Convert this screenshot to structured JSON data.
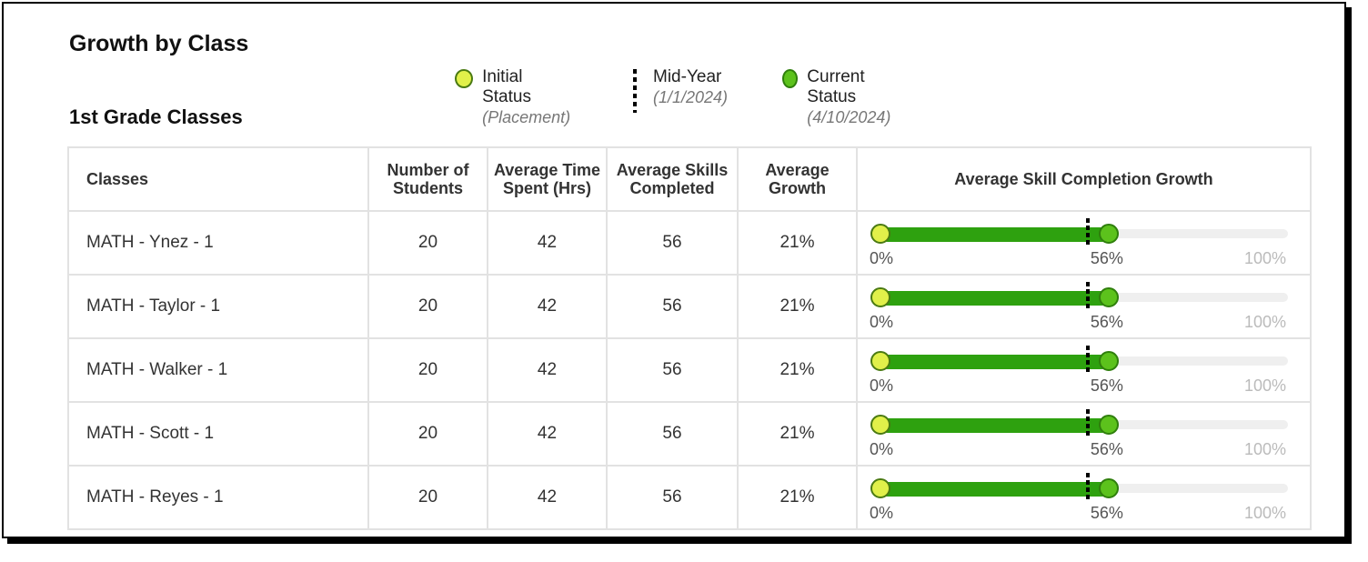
{
  "page": {
    "title": "Growth by Class",
    "subtitle": "1st Grade Classes"
  },
  "legend": {
    "initial": {
      "label": "Initial Status",
      "sub": "(Placement)"
    },
    "mid": {
      "label": "Mid-Year",
      "sub": "(1/1/2024)"
    },
    "current": {
      "label": "Current Status",
      "sub": "(4/10/2024)"
    }
  },
  "colors": {
    "initial": "#e1f04a",
    "current": "#5cc21c",
    "fill": "#2ea10f",
    "track": "#efefef"
  },
  "table": {
    "headers": {
      "classes": "Classes",
      "students": "Number of Students",
      "time": "Average Time Spent (Hrs)",
      "skills": "Average Skills Completed",
      "growth": "Average Growth",
      "completion": "Average Skill Completion Growth"
    },
    "rows": [
      {
        "name": "MATH - Ynez - 1",
        "students": "20",
        "time": "42",
        "skills": "56",
        "growth": "21%",
        "start_label": "0%",
        "current_label": "56%",
        "max_label": "100%",
        "start": 0,
        "mid": 50,
        "current": 56
      },
      {
        "name": "MATH - Taylor - 1",
        "students": "20",
        "time": "42",
        "skills": "56",
        "growth": "21%",
        "start_label": "0%",
        "current_label": "56%",
        "max_label": "100%",
        "start": 0,
        "mid": 50,
        "current": 56
      },
      {
        "name": "MATH - Walker - 1",
        "students": "20",
        "time": "42",
        "skills": "56",
        "growth": "21%",
        "start_label": "0%",
        "current_label": "56%",
        "max_label": "100%",
        "start": 0,
        "mid": 50,
        "current": 56
      },
      {
        "name": "MATH - Scott - 1",
        "students": "20",
        "time": "42",
        "skills": "56",
        "growth": "21%",
        "start_label": "0%",
        "current_label": "56%",
        "max_label": "100%",
        "start": 0,
        "mid": 50,
        "current": 56
      },
      {
        "name": "MATH - Reyes - 1",
        "students": "20",
        "time": "42",
        "skills": "56",
        "growth": "21%",
        "start_label": "0%",
        "current_label": "56%",
        "max_label": "100%",
        "start": 0,
        "mid": 50,
        "current": 56
      }
    ]
  }
}
